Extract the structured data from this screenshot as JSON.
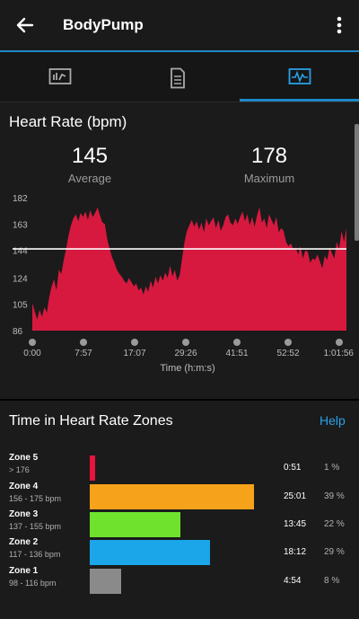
{
  "header": {
    "title": "BodyPump",
    "back_icon": "arrow-left-icon",
    "menu_icon": "more-vertical-icon"
  },
  "tabs": [
    {
      "icon": "summary-chart-icon",
      "selected": false
    },
    {
      "icon": "document-list-icon",
      "selected": false
    },
    {
      "icon": "graph-activity-icon",
      "selected": true
    }
  ],
  "heart_rate": {
    "title": "Heart Rate (bpm)",
    "average": {
      "value": "145",
      "label": "Average"
    },
    "maximum": {
      "value": "178",
      "label": "Maximum"
    }
  },
  "chart_data": {
    "type": "area",
    "title": "Heart Rate (bpm)",
    "xlabel": "Time (h:m:s)",
    "ylabel": "",
    "x_ticks": [
      "0:00",
      "7:57",
      "17:07",
      "29:26",
      "41:51",
      "52:52",
      "1:01:56"
    ],
    "y_ticks": [
      "86",
      "105",
      "124",
      "144",
      "163",
      "182"
    ],
    "ylim": [
      86,
      182
    ],
    "average_line": 145,
    "series": [
      {
        "values": [
          106,
          100,
          94,
          101,
          96,
          103,
          99,
          110,
          118,
          123,
          115,
          130,
          127,
          137,
          145,
          155,
          162,
          167,
          170,
          165,
          171,
          168,
          172,
          166,
          173,
          168,
          171,
          175,
          169,
          164,
          163,
          152,
          145,
          139,
          135,
          130,
          127,
          125,
          122,
          120,
          124,
          121,
          118,
          120,
          115,
          117,
          112,
          118,
          114,
          122,
          117,
          125,
          120,
          126,
          122,
          128,
          124,
          133,
          125,
          130,
          122,
          126,
          138,
          150,
          158,
          162,
          166,
          161,
          165,
          159,
          164,
          157,
          167,
          162,
          165,
          168,
          160,
          166,
          158,
          162,
          168,
          170,
          164,
          162,
          167,
          163,
          168,
          172,
          165,
          170,
          162,
          168,
          161,
          169,
          175,
          164,
          167,
          160,
          170,
          166,
          162,
          168,
          157,
          160,
          158,
          150,
          147,
          149,
          145,
          146,
          141,
          147,
          138,
          144,
          143,
          135,
          138,
          137,
          141,
          136,
          131,
          140,
          137,
          146,
          142,
          138,
          150,
          145,
          158,
          150,
          160
        ]
      }
    ]
  },
  "zones": {
    "title": "Time in Heart Rate Zones",
    "help": "Help",
    "rows": [
      {
        "name": "Zone 5",
        "range": "> 176",
        "time": "0:51",
        "percent": "1 %",
        "fraction": 0.03,
        "color": "#e8143c"
      },
      {
        "name": "Zone 4",
        "range": "156 - 175 bpm",
        "time": "25:01",
        "percent": "39 %",
        "fraction": 1.0,
        "color": "#f7a21b"
      },
      {
        "name": "Zone 3",
        "range": "137 - 155 bpm",
        "time": "13:45",
        "percent": "22 %",
        "fraction": 0.55,
        "color": "#6fe22e"
      },
      {
        "name": "Zone 2",
        "range": "117 - 136 bpm",
        "time": "18:12",
        "percent": "29 %",
        "fraction": 0.73,
        "color": "#1aa6e8"
      },
      {
        "name": "Zone 1",
        "range": "98 - 116 bpm",
        "time": "4:54",
        "percent": "8 %",
        "fraction": 0.19,
        "color": "#8a8a8a"
      }
    ]
  },
  "colors": {
    "accent": "#1e88c7",
    "chart_fill": "#d7193f",
    "background": "#1b1b1b"
  }
}
